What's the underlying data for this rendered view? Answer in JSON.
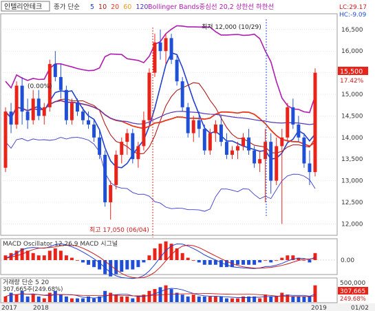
{
  "header": {
    "stock_name": "인텔리안테크",
    "ma_label": "종가 단순",
    "ma_periods": [
      {
        "label": "5",
        "color": "#1f3fcf"
      },
      {
        "label": "10",
        "color": "#b01a1a"
      },
      {
        "label": "20",
        "color": "#e8371a"
      },
      {
        "label": "60",
        "color": "#e89a1a"
      },
      {
        "label": "120",
        "color": "#4a2fd0"
      }
    ],
    "bb_label": "Bollinger Bands중심선 20,2  상한선  하한선",
    "bb_color": "#b01ab0"
  },
  "annotations": {
    "low": "최저 12,000 (10/29)",
    "high": "최고 17,050 (06/04)",
    "pct_start": "(0.00%)",
    "lc": "LC:29.17",
    "hc": "HC:-9.09"
  },
  "price_tags": {
    "price": "15,500",
    "pct": "17.42%"
  },
  "macd": {
    "label": "MACD Oscillator 12,26,9  MACD  시그널",
    "zero_label": "0.00"
  },
  "volume": {
    "label": "거래량  단순 5  20",
    "sub_label": "307,665주(249.68%)",
    "top_label": "500,000",
    "value_tag": "307,665",
    "pct_tag": "249.68%"
  },
  "x_axis": {
    "labels": [
      "2017",
      "2018",
      "2019",
      "01/02"
    ]
  },
  "colors": {
    "up": "#e8231a",
    "down": "#1f4fd6",
    "grid": "#d6d6d6",
    "axis_bg": "#ffffff"
  },
  "chart_data": {
    "type": "candlestick",
    "y_axis": {
      "ticks": [
        "16,500",
        "16,000",
        "15,500",
        "15,000",
        "14,500",
        "14,000",
        "13,500",
        "13,000",
        "12,500",
        "12,000"
      ],
      "range": [
        11800,
        16800
      ]
    },
    "candles": [
      {
        "o": 13300,
        "h": 14700,
        "l": 13200,
        "c": 14600
      },
      {
        "o": 14600,
        "h": 14800,
        "l": 14100,
        "c": 14300
      },
      {
        "o": 14300,
        "h": 15300,
        "l": 14200,
        "c": 15200
      },
      {
        "o": 15200,
        "h": 15400,
        "l": 14300,
        "c": 14600
      },
      {
        "o": 14600,
        "h": 14900,
        "l": 14200,
        "c": 14400
      },
      {
        "o": 14400,
        "h": 15100,
        "l": 14300,
        "c": 14900
      },
      {
        "o": 14900,
        "h": 15100,
        "l": 14400,
        "c": 14500
      },
      {
        "o": 14500,
        "h": 14800,
        "l": 14300,
        "c": 14700
      },
      {
        "o": 14700,
        "h": 15800,
        "l": 14600,
        "c": 15700
      },
      {
        "o": 15700,
        "h": 16000,
        "l": 15300,
        "c": 15400
      },
      {
        "o": 15400,
        "h": 15700,
        "l": 14900,
        "c": 15100
      },
      {
        "o": 15100,
        "h": 15200,
        "l": 14300,
        "c": 14400
      },
      {
        "o": 14400,
        "h": 14900,
        "l": 14300,
        "c": 14800
      },
      {
        "o": 14800,
        "h": 14900,
        "l": 14500,
        "c": 14600
      },
      {
        "o": 14600,
        "h": 14700,
        "l": 14300,
        "c": 14400
      },
      {
        "o": 14400,
        "h": 14600,
        "l": 14200,
        "c": 14300
      },
      {
        "o": 14300,
        "h": 14400,
        "l": 13900,
        "c": 14000
      },
      {
        "o": 14000,
        "h": 14200,
        "l": 13500,
        "c": 13600
      },
      {
        "o": 13600,
        "h": 13700,
        "l": 12400,
        "c": 12500
      },
      {
        "o": 12500,
        "h": 13000,
        "l": 12100,
        "c": 12900
      },
      {
        "o": 12900,
        "h": 13700,
        "l": 12800,
        "c": 13600
      },
      {
        "o": 13600,
        "h": 14000,
        "l": 13400,
        "c": 13900
      },
      {
        "o": 13900,
        "h": 14200,
        "l": 13600,
        "c": 14100
      },
      {
        "o": 14100,
        "h": 14200,
        "l": 13400,
        "c": 13500
      },
      {
        "o": 13500,
        "h": 13900,
        "l": 13300,
        "c": 13800
      },
      {
        "o": 13800,
        "h": 14600,
        "l": 13700,
        "c": 14400
      },
      {
        "o": 14400,
        "h": 15600,
        "l": 14300,
        "c": 15500
      },
      {
        "o": 15500,
        "h": 16400,
        "l": 15400,
        "c": 16200
      },
      {
        "o": 16200,
        "h": 16500,
        "l": 15800,
        "c": 16000
      },
      {
        "o": 16000,
        "h": 16400,
        "l": 15700,
        "c": 16300
      },
      {
        "o": 16300,
        "h": 16400,
        "l": 15700,
        "c": 15800
      },
      {
        "o": 15800,
        "h": 15900,
        "l": 15200,
        "c": 15300
      },
      {
        "o": 15300,
        "h": 15400,
        "l": 14600,
        "c": 14700
      },
      {
        "o": 14700,
        "h": 14800,
        "l": 14000,
        "c": 14100
      },
      {
        "o": 14100,
        "h": 14500,
        "l": 13900,
        "c": 14400
      },
      {
        "o": 14400,
        "h": 14600,
        "l": 14000,
        "c": 14200
      },
      {
        "o": 14200,
        "h": 14300,
        "l": 13600,
        "c": 13700
      },
      {
        "o": 13700,
        "h": 14200,
        "l": 13600,
        "c": 14100
      },
      {
        "o": 14100,
        "h": 14400,
        "l": 13900,
        "c": 14300
      },
      {
        "o": 14300,
        "h": 14500,
        "l": 13800,
        "c": 13900
      },
      {
        "o": 13900,
        "h": 14100,
        "l": 13500,
        "c": 13600
      },
      {
        "o": 13600,
        "h": 13800,
        "l": 13500,
        "c": 13700
      },
      {
        "o": 13700,
        "h": 13900,
        "l": 13500,
        "c": 13800
      },
      {
        "o": 13800,
        "h": 14100,
        "l": 13700,
        "c": 14000
      },
      {
        "o": 14000,
        "h": 14200,
        "l": 13600,
        "c": 13700
      },
      {
        "o": 13700,
        "h": 13800,
        "l": 13300,
        "c": 13400
      },
      {
        "o": 13400,
        "h": 13700,
        "l": 13200,
        "c": 13500
      },
      {
        "o": 13500,
        "h": 14200,
        "l": 12500,
        "c": 13900
      },
      {
        "o": 13900,
        "h": 14100,
        "l": 12700,
        "c": 13000
      },
      {
        "o": 13000,
        "h": 14000,
        "l": 12900,
        "c": 13800
      },
      {
        "o": 13800,
        "h": 14200,
        "l": 12000,
        "c": 14000
      },
      {
        "o": 14000,
        "h": 14800,
        "l": 13900,
        "c": 14700
      },
      {
        "o": 14700,
        "h": 14900,
        "l": 14200,
        "c": 14300
      },
      {
        "o": 14300,
        "h": 14500,
        "l": 13900,
        "c": 14000
      },
      {
        "o": 14000,
        "h": 14100,
        "l": 13300,
        "c": 13400
      },
      {
        "o": 13400,
        "h": 13700,
        "l": 12900,
        "c": 13200
      },
      {
        "o": 13200,
        "h": 15600,
        "l": 13100,
        "c": 15500
      }
    ],
    "macd_osc": [
      2,
      3,
      4,
      5,
      4,
      3,
      2,
      2,
      4,
      5,
      4,
      2,
      1,
      0,
      -1,
      -2,
      -3,
      -4,
      -6,
      -7,
      -6,
      -5,
      -4,
      -4,
      -3,
      -1,
      2,
      5,
      7,
      8,
      7,
      5,
      3,
      1,
      0,
      -1,
      -2,
      -2,
      -2,
      -3,
      -3,
      -3,
      -2,
      -2,
      -2,
      -2,
      -1,
      0,
      -1,
      0,
      1,
      2,
      2,
      1,
      0,
      -1,
      3
    ],
    "volume": [
      3,
      5,
      4,
      6,
      3,
      4,
      3,
      2,
      5,
      6,
      4,
      3,
      2,
      2,
      2,
      3,
      2,
      3,
      6,
      5,
      4,
      3,
      3,
      2,
      3,
      4,
      6,
      7,
      8,
      9,
      7,
      5,
      4,
      3,
      4,
      3,
      3,
      3,
      3,
      3,
      2,
      2,
      2,
      3,
      3,
      3,
      2,
      4,
      3,
      3,
      5,
      4,
      3,
      3,
      3,
      3,
      9
    ]
  }
}
